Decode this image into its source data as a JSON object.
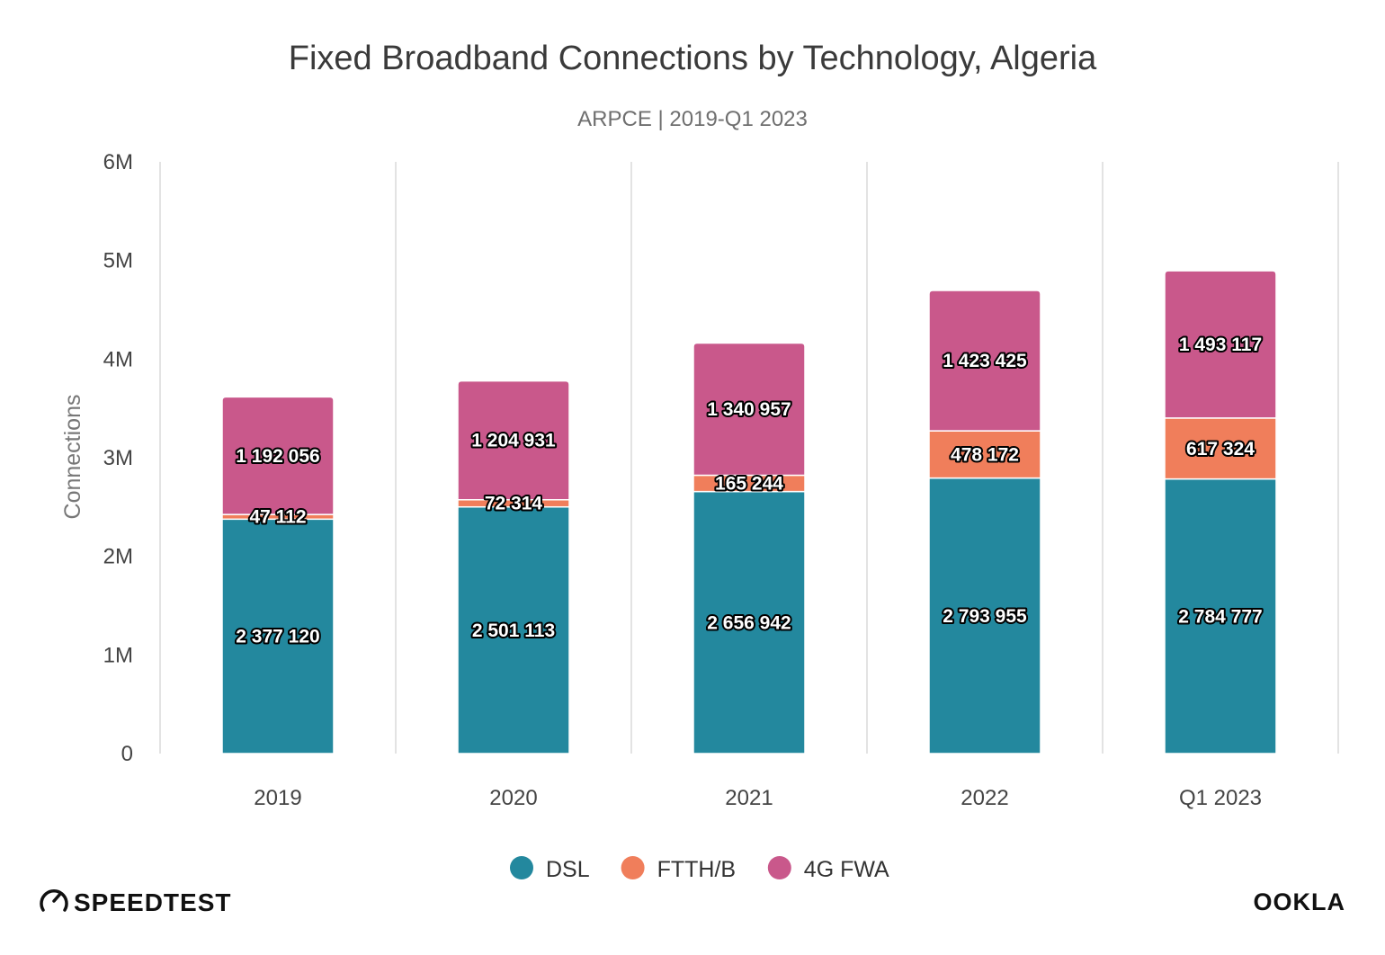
{
  "chart_data": {
    "type": "bar",
    "stacked": true,
    "title": "Fixed Broadband Connections by Technology, Algeria",
    "subtitle": "ARPCE | 2019-Q1 2023",
    "ylabel": "Connections",
    "xlabel": "",
    "ylim": [
      0,
      6000000
    ],
    "yticks": [
      {
        "value": 0,
        "label": "0"
      },
      {
        "value": 1000000,
        "label": "1M"
      },
      {
        "value": 2000000,
        "label": "2M"
      },
      {
        "value": 3000000,
        "label": "3M"
      },
      {
        "value": 4000000,
        "label": "4M"
      },
      {
        "value": 5000000,
        "label": "5M"
      },
      {
        "value": 6000000,
        "label": "6M"
      }
    ],
    "categories": [
      "2019",
      "2020",
      "2021",
      "2022",
      "Q1 2023"
    ],
    "series": [
      {
        "name": "DSL",
        "color": "#23889e",
        "values": [
          2377120,
          2501113,
          2656942,
          2793955,
          2784777
        ],
        "labels": [
          "2 377 120",
          "2 501 113",
          "2 656 942",
          "2 793 955",
          "2 784 777"
        ]
      },
      {
        "name": "FTTH/B",
        "color": "#f07e5b",
        "values": [
          47112,
          72314,
          165244,
          478172,
          617324
        ],
        "labels": [
          "47 112",
          "72 314",
          "165 244",
          "478 172",
          "617 324"
        ]
      },
      {
        "name": "4G FWA",
        "color": "#c9588b",
        "values": [
          1192056,
          1204931,
          1340957,
          1423425,
          1493117
        ],
        "labels": [
          "1 192 056",
          "1 204 931",
          "1 340 957",
          "1 423 425",
          "1 493 117"
        ]
      }
    ],
    "grid": "vertical",
    "legend_position": "bottom-center"
  },
  "branding": {
    "left_logo_text": "SPEEDTEST",
    "right_logo_text": "OOKLA"
  }
}
